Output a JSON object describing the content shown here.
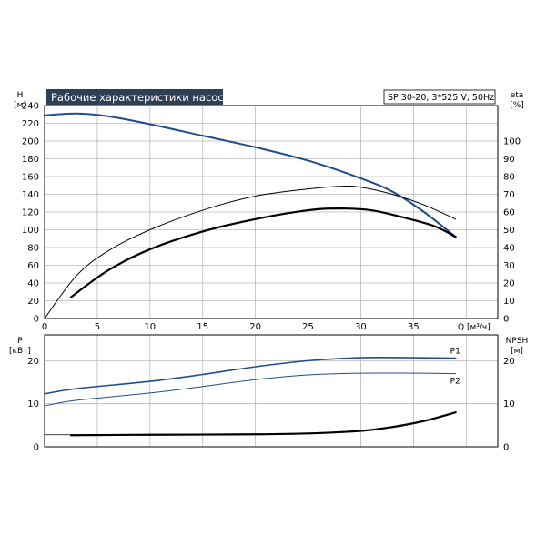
{
  "chart_data": {
    "type": "line",
    "title": "Рабочие характеристики насоса",
    "subtitle": "SP 30-20, 3*525 V, 50Hz",
    "colors": {
      "blue": "#1f4e8c",
      "black": "#000000",
      "title_bg": "#2e3f56",
      "grid": "#b9b9b9"
    },
    "x_axis": {
      "label": "Q [м³/ч]",
      "ticks": [
        "0",
        "5",
        "10",
        "15",
        "20",
        "25",
        "30",
        "35"
      ],
      "range": [
        0,
        43
      ]
    },
    "top_panel": {
      "y_left": {
        "label_line1": "H",
        "label_line2": "[м]",
        "range": [
          0,
          240
        ],
        "ticks": [
          "0",
          "20",
          "40",
          "60",
          "80",
          "100",
          "120",
          "140",
          "160",
          "180",
          "200",
          "220",
          "240"
        ]
      },
      "y_right": {
        "label_line1": "eta",
        "label_line2": "[%]",
        "range": [
          0,
          120
        ],
        "ticks": [
          "0",
          "10",
          "20",
          "30",
          "40",
          "50",
          "60",
          "70",
          "80",
          "90",
          "100"
        ]
      },
      "series": [
        {
          "key": "H",
          "color": "blue",
          "width": 2,
          "axis": "left",
          "x": [
            0,
            3,
            6,
            10,
            15,
            20,
            25,
            30,
            33,
            36,
            39
          ],
          "y": [
            229,
            231,
            228,
            219,
            206,
            193,
            178,
            158,
            143,
            120,
            92
          ]
        },
        {
          "key": "eta_thin",
          "color": "black",
          "width": 1,
          "axis": "right",
          "x": [
            0,
            3,
            6,
            10,
            15,
            20,
            25,
            28,
            30,
            33,
            36,
            39
          ],
          "y": [
            0,
            24,
            38,
            50,
            61,
            69,
            73,
            74.5,
            74,
            70,
            64,
            56
          ]
        },
        {
          "key": "eta_thick",
          "color": "black",
          "width": 2.2,
          "axis": "right",
          "x": [
            2.5,
            6,
            10,
            15,
            20,
            25,
            28,
            31,
            34,
            37,
            39
          ],
          "y": [
            12,
            27,
            39,
            49,
            56,
            61,
            62,
            61,
            57,
            52,
            46
          ]
        }
      ]
    },
    "bottom_panel": {
      "y_left": {
        "label_line1": "P",
        "label_line2": "[кВт]",
        "range": [
          0,
          26
        ],
        "ticks": [
          "0",
          "10",
          "20"
        ]
      },
      "y_right": {
        "label_line1": "NPSH",
        "label_line2": "[м]",
        "range": [
          0,
          26
        ],
        "ticks": [
          "0",
          "10",
          "20"
        ]
      },
      "series": [
        {
          "key": "P1",
          "label": "P1",
          "color": "blue",
          "width": 1.6,
          "axis": "left",
          "x": [
            0,
            3,
            10,
            15,
            20,
            25,
            30,
            35,
            39
          ],
          "y": [
            12.3,
            13.5,
            15.2,
            16.8,
            18.6,
            20.0,
            20.7,
            20.7,
            20.6
          ]
        },
        {
          "key": "P2",
          "label": "P2",
          "color": "blue",
          "width": 1,
          "axis": "left",
          "x": [
            0,
            3,
            10,
            15,
            20,
            25,
            30,
            35,
            39
          ],
          "y": [
            9.5,
            10.8,
            12.5,
            14.0,
            15.6,
            16.7,
            17.1,
            17.1,
            17.0
          ]
        },
        {
          "key": "NPSH_thin",
          "color": "black",
          "width": 0.8,
          "axis": "right",
          "x": [
            0,
            3
          ],
          "y": [
            2.8,
            2.8
          ]
        },
        {
          "key": "NPSH",
          "color": "black",
          "width": 2.2,
          "axis": "right",
          "x": [
            2.5,
            10,
            20,
            25,
            30,
            33,
            36,
            39
          ],
          "y": [
            2.7,
            2.8,
            2.9,
            3.1,
            3.7,
            4.6,
            6.0,
            8.0
          ]
        }
      ]
    },
    "grid": true
  }
}
